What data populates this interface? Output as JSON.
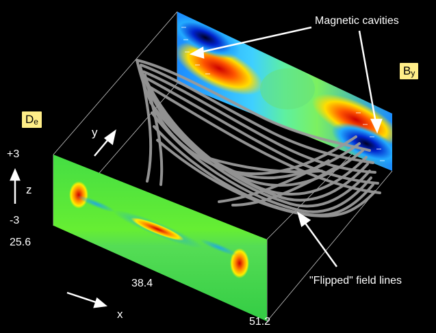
{
  "annotations": {
    "magnetic_cavities": "Magnetic cavities",
    "flipped_field_lines": "\"Flipped\" field lines"
  },
  "badges": {
    "by_base": "B",
    "by_sub": "y",
    "de_base": "D",
    "de_sub": "e"
  },
  "axes": {
    "x_label": "x",
    "y_label": "y",
    "z_label": "z",
    "x_ticks": [
      "25.6",
      "38.4",
      "51.2"
    ],
    "z_ticks": [
      "+3",
      "-3"
    ]
  }
}
